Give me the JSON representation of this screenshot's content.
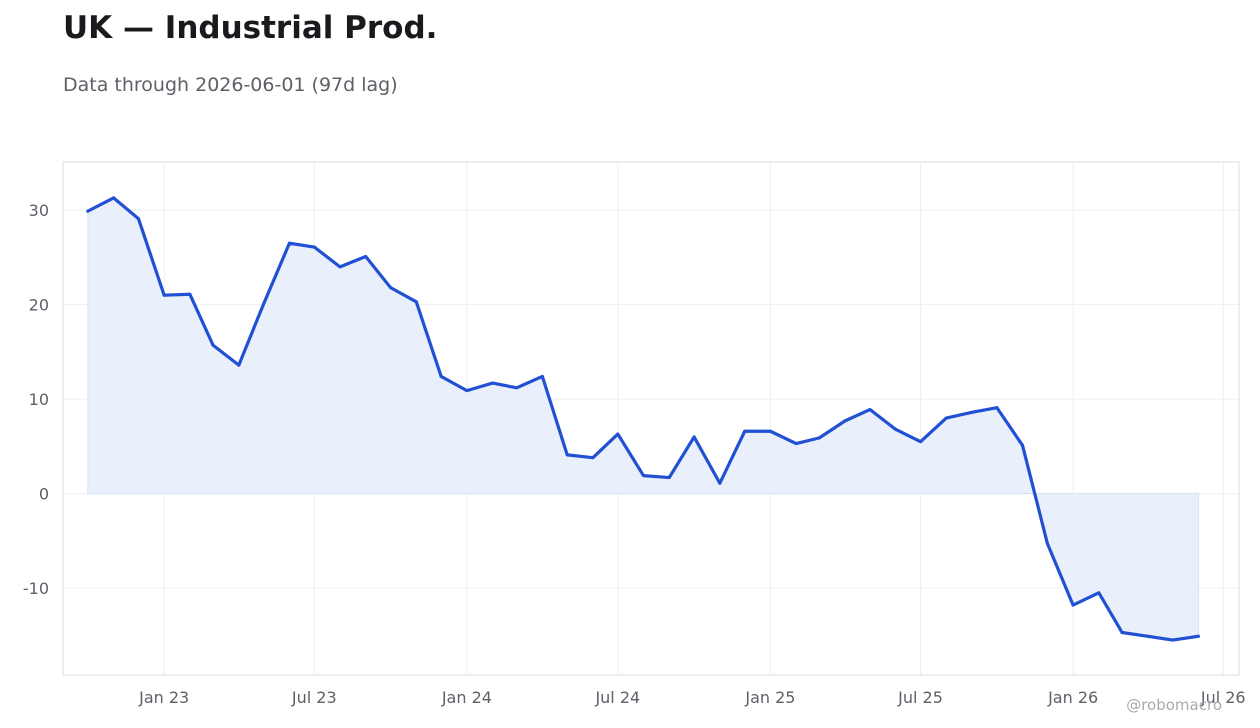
{
  "page": {
    "title": "UK — Industrial Prod.",
    "subtitle": "Data through 2026-06-01 (97d lag)",
    "watermark": "@robomacro"
  },
  "colors": {
    "line": "#2150d4",
    "fill": "#eaf0fb",
    "grid": "#eeeff2",
    "frame": "#dcdde2"
  },
  "chart_data": {
    "type": "area",
    "title": "UK — Industrial Prod.",
    "subtitle": "Data through 2026-06-01 (97d lag)",
    "xlabel": "",
    "ylabel": "",
    "grid": true,
    "legend": "none",
    "x_range": [
      "2022-09-01",
      "2026-07-20"
    ],
    "ylim": [
      -19.2,
      35.1
    ],
    "y_ticks": [
      30,
      20,
      10,
      0,
      -10
    ],
    "x_ticks": [
      {
        "date": "2023-01-01",
        "label": "Jan 23"
      },
      {
        "date": "2023-07-01",
        "label": "Jul 23"
      },
      {
        "date": "2024-01-01",
        "label": "Jan 24"
      },
      {
        "date": "2024-07-01",
        "label": "Jul 24"
      },
      {
        "date": "2025-01-01",
        "label": "Jan 25"
      },
      {
        "date": "2025-07-01",
        "label": "Jul 25"
      },
      {
        "date": "2026-01-01",
        "label": "Jan 26"
      },
      {
        "date": "2026-07-01",
        "label": "Jul 26"
      }
    ],
    "series": [
      {
        "x": [
          "2022-10-01",
          "2022-11-01",
          "2022-12-01",
          "2023-01-01",
          "2023-02-01",
          "2023-03-01",
          "2023-04-01",
          "2023-05-01",
          "2023-06-01",
          "2023-07-01",
          "2023-08-01",
          "2023-09-01",
          "2023-10-01",
          "2023-11-01",
          "2023-12-01",
          "2024-01-01",
          "2024-02-01",
          "2024-03-01",
          "2024-04-01",
          "2024-05-01",
          "2024-06-01",
          "2024-07-01",
          "2024-08-01",
          "2024-09-01",
          "2024-10-01",
          "2024-11-01",
          "2024-12-01",
          "2025-01-01",
          "2025-02-01",
          "2025-03-01",
          "2025-04-01",
          "2025-05-01",
          "2025-06-01",
          "2025-07-01",
          "2025-08-01",
          "2025-09-01",
          "2025-10-01",
          "2025-11-01",
          "2025-12-01",
          "2026-01-01",
          "2026-02-01",
          "2026-03-01",
          "2026-04-01",
          "2026-05-01",
          "2026-06-01"
        ],
        "values": [
          29.9,
          31.3,
          29.1,
          21.0,
          21.1,
          15.7,
          13.6,
          20.1,
          26.5,
          26.1,
          24.0,
          25.1,
          21.8,
          20.3,
          12.4,
          10.9,
          11.7,
          11.2,
          12.4,
          4.1,
          3.8,
          6.3,
          1.9,
          1.7,
          6.0,
          1.1,
          6.6,
          6.6,
          5.3,
          5.9,
          7.7,
          8.9,
          6.8,
          5.5,
          8.0,
          8.6,
          9.1,
          5.1,
          -5.3,
          -11.8,
          -10.5,
          -14.7,
          -15.1,
          -15.5,
          -15.1
        ]
      }
    ]
  }
}
